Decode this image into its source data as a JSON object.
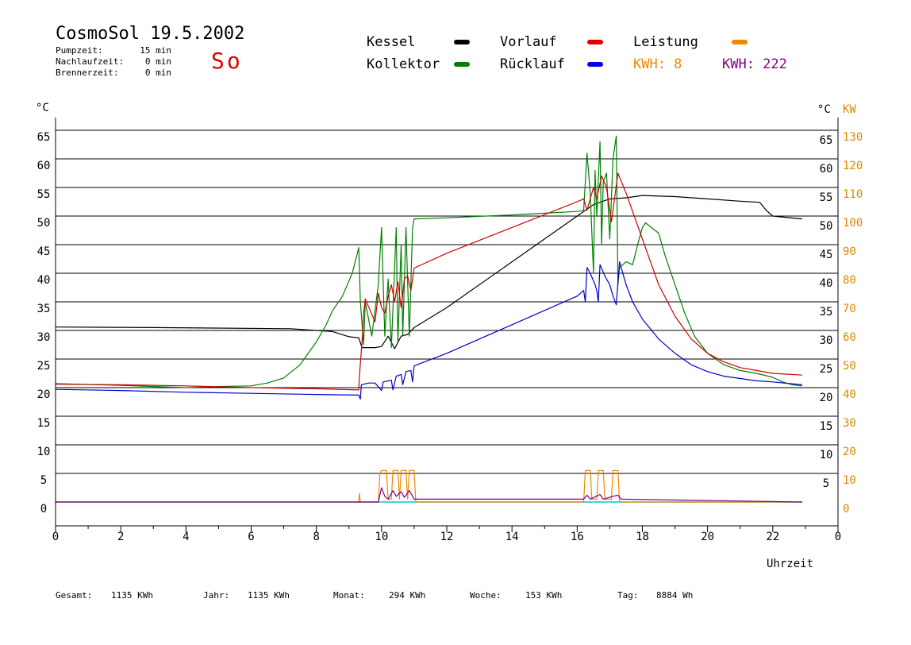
{
  "header": {
    "title": "CosmoSol 19.5.2002",
    "pump_label": "Pumpzeit:",
    "pump_value": "15 min",
    "after_label": "Nachlaufzeit:",
    "after_value": "0 min",
    "burner_label": "Brennerzeit:",
    "burner_value": "0 min",
    "day": "So"
  },
  "legend": {
    "kessel": "Kessel",
    "vorlauf": "Vorlauf",
    "leistung": "Leistung",
    "kollektor": "Kollektor",
    "ruecklauf": "Rücklauf",
    "kwh1": "KWH: 8",
    "kwh2": "KWH: 222"
  },
  "footer": {
    "gesamt_label": "Gesamt:",
    "gesamt_value": "1135 KWh",
    "jahr_label": "Jahr:",
    "jahr_value": "1135 KWh",
    "monat_label": "Monat:",
    "monat_value": "294 KWh",
    "woche_label": "Woche:",
    "woche_value": "153 KWh",
    "tag_label": "Tag:",
    "tag_value": "8884 Wh"
  },
  "chart_data": {
    "type": "line",
    "xlabel": "Uhrzeit",
    "ylabel_left": "°C",
    "ylabel_right_temp": "°C",
    "ylabel_right_power": "KW",
    "xlim": [
      0,
      24
    ],
    "ylim": [
      0,
      65
    ],
    "x_ticks": [
      "0",
      "2",
      "4",
      "6",
      "8",
      "10",
      "12",
      "14",
      "16",
      "18",
      "20",
      "22",
      "0"
    ],
    "y_ticks_left": [
      "0",
      "5",
      "10",
      "15",
      "20",
      "25",
      "30",
      "35",
      "40",
      "45",
      "50",
      "55",
      "60",
      "65"
    ],
    "y_ticks_right_temp": [
      "5",
      "10",
      "15",
      "20",
      "25",
      "30",
      "35",
      "40",
      "45",
      "50",
      "55",
      "60",
      "65"
    ],
    "y_ticks_right_power": [
      "0",
      "10",
      "20",
      "30",
      "40",
      "50",
      "60",
      "70",
      "80",
      "90",
      "100",
      "110",
      "120",
      "130"
    ],
    "grid": true,
    "colors": {
      "kessel": "#000000",
      "kollektor": "#008000",
      "vorlauf": "#cc0000",
      "ruecklauf": "#0000cc",
      "leistung": "#ee8800",
      "kwh": "#800080",
      "baseline": "#00cccc"
    },
    "series": [
      {
        "name": "Kessel",
        "key": "kessel",
        "values": [
          [
            0,
            30.6
          ],
          [
            3,
            30.5
          ],
          [
            7.2,
            30.3
          ],
          [
            8,
            30.0
          ],
          [
            8.5,
            29.8
          ],
          [
            9,
            28.9
          ],
          [
            9.3,
            28.7
          ],
          [
            9.4,
            27.0
          ],
          [
            9.8,
            27.0
          ],
          [
            10,
            27.2
          ],
          [
            10.2,
            29.0
          ],
          [
            10.4,
            26.8
          ],
          [
            10.6,
            29.0
          ],
          [
            10.8,
            29.3
          ],
          [
            11,
            30.5
          ],
          [
            12,
            34
          ],
          [
            14,
            42
          ],
          [
            16,
            50
          ],
          [
            16.5,
            52
          ],
          [
            17,
            53
          ],
          [
            17.5,
            53.2
          ],
          [
            18,
            53.6
          ],
          [
            19,
            53.4
          ],
          [
            20,
            53.0
          ],
          [
            21,
            52.6
          ],
          [
            21.6,
            52.4
          ],
          [
            21.8,
            51.0
          ],
          [
            22,
            50.0
          ],
          [
            22.9,
            49.5
          ]
        ]
      },
      {
        "name": "Kollektor",
        "key": "kollektor",
        "values": [
          [
            0,
            20.7
          ],
          [
            2,
            20.4
          ],
          [
            4,
            20.0
          ],
          [
            5,
            20.2
          ],
          [
            6,
            20.3
          ],
          [
            6.5,
            20.8
          ],
          [
            7,
            21.7
          ],
          [
            7.5,
            24
          ],
          [
            8,
            28
          ],
          [
            8.3,
            31
          ],
          [
            8.5,
            33.5
          ],
          [
            8.8,
            36
          ],
          [
            9.1,
            40
          ],
          [
            9.3,
            44.5
          ],
          [
            9.35,
            35
          ],
          [
            9.45,
            27.5
          ],
          [
            9.5,
            35
          ],
          [
            9.7,
            29
          ],
          [
            9.9,
            38
          ],
          [
            10,
            48
          ],
          [
            10.1,
            29
          ],
          [
            10.2,
            39
          ],
          [
            10.3,
            27
          ],
          [
            10.45,
            48
          ],
          [
            10.5,
            28
          ],
          [
            10.6,
            45
          ],
          [
            10.65,
            29
          ],
          [
            10.75,
            48
          ],
          [
            10.85,
            29
          ],
          [
            10.95,
            48
          ],
          [
            11,
            49.5
          ],
          [
            12,
            49.7
          ],
          [
            14,
            50.2
          ],
          [
            15,
            50.5
          ],
          [
            16,
            50.8
          ],
          [
            16.2,
            51
          ],
          [
            16.3,
            61
          ],
          [
            16.4,
            54
          ],
          [
            16.5,
            40
          ],
          [
            16.55,
            58
          ],
          [
            16.6,
            50
          ],
          [
            16.7,
            63
          ],
          [
            16.75,
            45
          ],
          [
            16.8,
            56
          ],
          [
            16.9,
            57.5
          ],
          [
            17,
            46
          ],
          [
            17.1,
            60
          ],
          [
            17.2,
            64
          ],
          [
            17.25,
            38
          ],
          [
            17.3,
            41
          ],
          [
            17.5,
            42
          ],
          [
            17.7,
            41.5
          ],
          [
            17.9,
            46
          ],
          [
            18,
            48
          ],
          [
            18.1,
            48.8
          ],
          [
            18.5,
            47
          ],
          [
            18.7,
            43
          ],
          [
            19,
            38
          ],
          [
            19.3,
            33
          ],
          [
            19.6,
            29
          ],
          [
            20,
            26
          ],
          [
            20.5,
            24
          ],
          [
            21,
            23
          ],
          [
            21.5,
            22.5
          ],
          [
            22,
            21.8
          ],
          [
            22.3,
            21.0
          ],
          [
            22.6,
            20.5
          ],
          [
            22.9,
            20.3
          ]
        ]
      },
      {
        "name": "Vorlauf",
        "key": "vorlauf",
        "values": [
          [
            0,
            20.6
          ],
          [
            2,
            20.5
          ],
          [
            4,
            20.3
          ],
          [
            6,
            20.0
          ],
          [
            8,
            19.8
          ],
          [
            9.3,
            19.6
          ],
          [
            9.32,
            22
          ],
          [
            9.4,
            28
          ],
          [
            9.45,
            33
          ],
          [
            9.5,
            35.5
          ],
          [
            9.8,
            31.5
          ],
          [
            9.9,
            36.5
          ],
          [
            10,
            34
          ],
          [
            10.1,
            33
          ],
          [
            10.2,
            36
          ],
          [
            10.3,
            38
          ],
          [
            10.4,
            35
          ],
          [
            10.5,
            38.5
          ],
          [
            10.6,
            34
          ],
          [
            10.7,
            39
          ],
          [
            10.8,
            39.5
          ],
          [
            10.9,
            37
          ],
          [
            11,
            40.9
          ],
          [
            12,
            43.5
          ],
          [
            14,
            48
          ],
          [
            16,
            52.5
          ],
          [
            16.2,
            53
          ],
          [
            16.3,
            51
          ],
          [
            16.5,
            55
          ],
          [
            16.6,
            53
          ],
          [
            16.75,
            57
          ],
          [
            16.9,
            55
          ],
          [
            17.05,
            49
          ],
          [
            17.25,
            57.5
          ],
          [
            17.5,
            54
          ],
          [
            18,
            46
          ],
          [
            18.5,
            38
          ],
          [
            19,
            32.5
          ],
          [
            19.5,
            28.5
          ],
          [
            20,
            26
          ],
          [
            20.5,
            24.5
          ],
          [
            21,
            23.5
          ],
          [
            21.5,
            23
          ],
          [
            22,
            22.5
          ],
          [
            22.9,
            22.2
          ]
        ]
      },
      {
        "name": "Rücklauf",
        "key": "ruecklauf",
        "values": [
          [
            0,
            19.7
          ],
          [
            2,
            19.5
          ],
          [
            4,
            19.2
          ],
          [
            6,
            19.0
          ],
          [
            8,
            18.8
          ],
          [
            9.3,
            18.7
          ],
          [
            9.35,
            18.0
          ],
          [
            9.38,
            20.5
          ],
          [
            9.6,
            20.8
          ],
          [
            9.8,
            20.8
          ],
          [
            10,
            19.5
          ],
          [
            10.05,
            21
          ],
          [
            10.3,
            21.3
          ],
          [
            10.35,
            19.6
          ],
          [
            10.45,
            22
          ],
          [
            10.6,
            22.3
          ],
          [
            10.65,
            20.5
          ],
          [
            10.75,
            22.8
          ],
          [
            10.9,
            23
          ],
          [
            10.95,
            21
          ],
          [
            11,
            23.8
          ],
          [
            12,
            26
          ],
          [
            14,
            31
          ],
          [
            16,
            36
          ],
          [
            16.2,
            37
          ],
          [
            16.25,
            35
          ],
          [
            16.3,
            41
          ],
          [
            16.4,
            40
          ],
          [
            16.55,
            38
          ],
          [
            16.6,
            37
          ],
          [
            16.65,
            35
          ],
          [
            16.7,
            41.5
          ],
          [
            16.85,
            39.5
          ],
          [
            17,
            38
          ],
          [
            17.1,
            36
          ],
          [
            17.2,
            34.5
          ],
          [
            17.3,
            42
          ],
          [
            17.5,
            38
          ],
          [
            17.7,
            35
          ],
          [
            18,
            32
          ],
          [
            18.5,
            28.5
          ],
          [
            19,
            26
          ],
          [
            19.5,
            24
          ],
          [
            20,
            22.8
          ],
          [
            20.5,
            22
          ],
          [
            21,
            21.6
          ],
          [
            21.5,
            21.2
          ],
          [
            22,
            21.0
          ],
          [
            22.9,
            20.5
          ]
        ]
      },
      {
        "name": "Leistung",
        "key": "leistung",
        "values": [
          [
            0,
            0
          ],
          [
            9.3,
            0
          ],
          [
            9.32,
            1.5
          ],
          [
            9.35,
            0
          ],
          [
            9.9,
            0
          ],
          [
            9.95,
            5
          ],
          [
            10,
            5.5
          ],
          [
            10.15,
            5.5
          ],
          [
            10.2,
            0.5
          ],
          [
            10.3,
            0.5
          ],
          [
            10.35,
            5.5
          ],
          [
            10.5,
            5.5
          ],
          [
            10.55,
            0.5
          ],
          [
            10.6,
            5.5
          ],
          [
            10.75,
            5.5
          ],
          [
            10.8,
            0.5
          ],
          [
            10.85,
            5.5
          ],
          [
            11,
            5.5
          ],
          [
            11.05,
            0
          ],
          [
            16.2,
            0
          ],
          [
            16.25,
            5.5
          ],
          [
            16.4,
            5.5
          ],
          [
            16.45,
            0.5
          ],
          [
            16.6,
            0.5
          ],
          [
            16.65,
            5.5
          ],
          [
            16.8,
            5.5
          ],
          [
            16.85,
            0.5
          ],
          [
            17.05,
            0.5
          ],
          [
            17.1,
            5.5
          ],
          [
            17.25,
            5.5
          ],
          [
            17.3,
            0
          ],
          [
            22.9,
            0
          ]
        ]
      },
      {
        "name": "KWH",
        "key": "kwh",
        "values": [
          [
            0,
            0
          ],
          [
            9.9,
            0
          ],
          [
            10,
            2.5
          ],
          [
            10.1,
            1
          ],
          [
            10.2,
            0.5
          ],
          [
            10.35,
            2
          ],
          [
            10.45,
            1
          ],
          [
            10.6,
            1.8
          ],
          [
            10.7,
            0.8
          ],
          [
            10.85,
            2
          ],
          [
            11,
            0.5
          ],
          [
            11,
            0.5
          ],
          [
            16.2,
            0.5
          ],
          [
            16.3,
            1.2
          ],
          [
            16.4,
            0.5
          ],
          [
            16.7,
            1.3
          ],
          [
            16.8,
            0.5
          ],
          [
            17.1,
            1.0
          ],
          [
            17.25,
            1.2
          ],
          [
            17.35,
            0.5
          ],
          [
            22.9,
            0
          ]
        ]
      }
    ]
  }
}
